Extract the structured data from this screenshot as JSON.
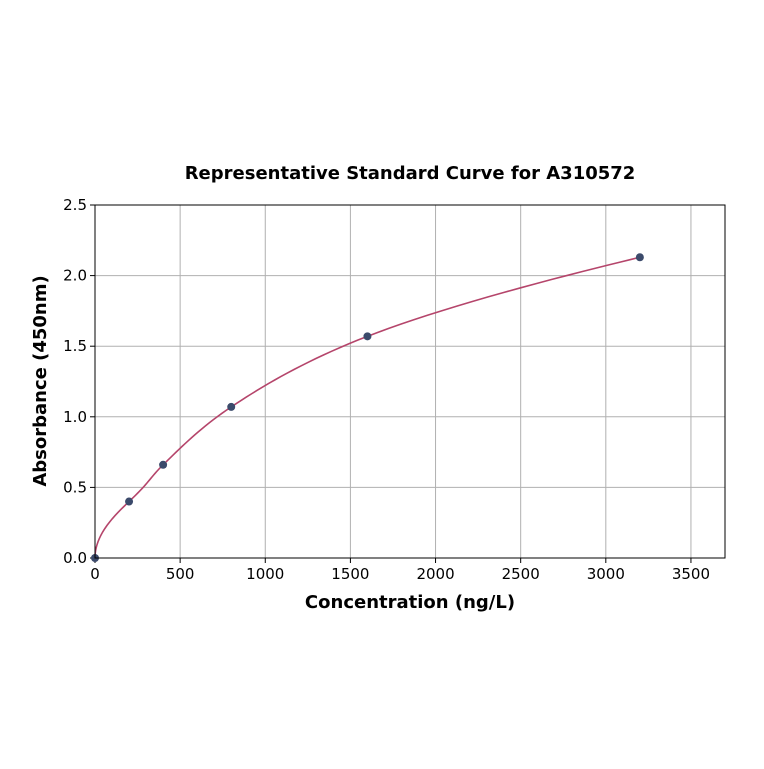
{
  "chart_data": {
    "type": "scatter",
    "title": "Representative Standard Curve for A310572",
    "xlabel": "Concentration (ng/L)",
    "ylabel": "Absorbance (450nm)",
    "xlim": [
      0,
      3700
    ],
    "ylim": [
      0,
      2.5
    ],
    "xticks": [
      0,
      500,
      1000,
      1500,
      2000,
      2500,
      3000,
      3500
    ],
    "yticks": [
      0.0,
      0.5,
      1.0,
      1.5,
      2.0,
      2.5
    ],
    "grid": true,
    "points": {
      "x": [
        0,
        200,
        400,
        800,
        1600,
        3200
      ],
      "y": [
        0.0,
        0.4,
        0.66,
        1.07,
        1.57,
        2.13
      ]
    },
    "fit_curve": true,
    "colors": {
      "points": "#3b4a6b",
      "curve": "#b5456b",
      "grid": "#b0b0b0"
    }
  }
}
